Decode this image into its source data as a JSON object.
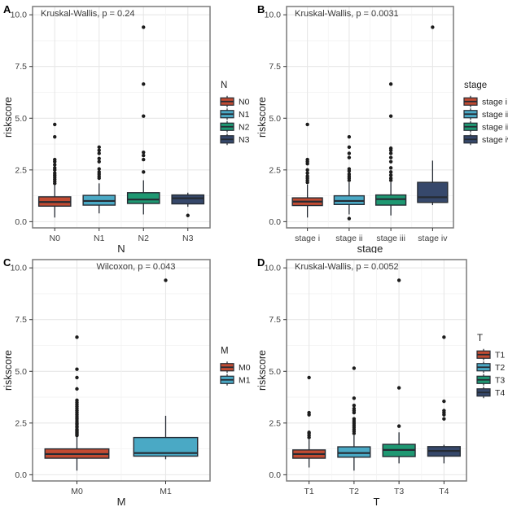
{
  "colors": {
    "background": "#ffffff",
    "panel_border": "#7a7a7a",
    "grid_major": "#e7e7e7",
    "grid_minor": "#f3f3f3",
    "box_stroke": "#252b33",
    "outlier": "#1c1c1c",
    "text": "#1f1f1f",
    "tick_text": "#404040",
    "annotation_text": "#3a3a3a",
    "group_palette": [
      "#c24b32",
      "#4aa9c5",
      "#1e9872",
      "#36486b"
    ]
  },
  "chart_data": [
    {
      "panel_label": "A",
      "type": "boxplot",
      "stat_annotation": "Kruskal-Wallis, p = 0.24",
      "annotation_align": "left",
      "xlabel": "N",
      "ylabel": "riskscore",
      "ylim": [
        -0.3,
        10.4
      ],
      "yticks": [
        0,
        2.5,
        5,
        7.5,
        10
      ],
      "ytick_labels": [
        "0.0",
        "2.5",
        "5.0",
        "7.5",
        "10.0"
      ],
      "grid": true,
      "legend_title": "N",
      "legend_position": "right",
      "categories": [
        "N0",
        "N1",
        "N2",
        "N3"
      ],
      "boxes": [
        {
          "group": "N0",
          "color_index": 0,
          "whisker_low": 0.2,
          "q1": 0.75,
          "median": 0.95,
          "q3": 1.2,
          "whisker_high": 1.8,
          "outliers": [
            1.85,
            1.95,
            2.05,
            2.15,
            2.25,
            2.35,
            2.5,
            2.6,
            2.75,
            2.9,
            3.0,
            4.1,
            4.7
          ]
        },
        {
          "group": "N1",
          "color_index": 1,
          "whisker_low": 0.4,
          "q1": 0.8,
          "median": 1.0,
          "q3": 1.27,
          "whisker_high": 1.85,
          "outliers": [
            2.1,
            2.2,
            2.3,
            2.4,
            2.55,
            2.9,
            3.05,
            3.3,
            3.45,
            3.6
          ]
        },
        {
          "group": "N2",
          "color_index": 2,
          "whisker_low": 0.35,
          "q1": 0.88,
          "median": 1.07,
          "q3": 1.4,
          "whisker_high": 2.0,
          "outliers": [
            2.4,
            3.0,
            3.2,
            3.35,
            5.1,
            6.65,
            9.4
          ]
        },
        {
          "group": "N3",
          "color_index": 3,
          "whisker_low": 0.72,
          "q1": 0.86,
          "median": 1.13,
          "q3": 1.29,
          "whisker_high": 1.4,
          "outliers": [
            0.3
          ]
        }
      ]
    },
    {
      "panel_label": "B",
      "type": "boxplot",
      "stat_annotation": "Kruskal-Wallis, p = 0.0031",
      "annotation_align": "left",
      "xlabel": "stage",
      "ylabel": "riskscore",
      "ylim": [
        -0.3,
        10.4
      ],
      "yticks": [
        0,
        2.5,
        5,
        7.5,
        10
      ],
      "ytick_labels": [
        "0.0",
        "2.5",
        "5.0",
        "7.5",
        "10.0"
      ],
      "grid": true,
      "legend_title": "stage",
      "legend_position": "right",
      "categories": [
        "stage i",
        "stage ii",
        "stage iii",
        "stage iv"
      ],
      "boxes": [
        {
          "group": "stage i",
          "color_index": 0,
          "whisker_low": 0.2,
          "q1": 0.78,
          "median": 0.97,
          "q3": 1.15,
          "whisker_high": 1.8,
          "outliers": [
            1.9,
            2.0,
            2.1,
            2.2,
            2.35,
            2.5,
            2.8,
            2.9,
            3.0,
            4.7
          ]
        },
        {
          "group": "stage ii",
          "color_index": 1,
          "whisker_low": 0.35,
          "q1": 0.83,
          "median": 1.0,
          "q3": 1.25,
          "whisker_high": 1.9,
          "outliers": [
            0.15,
            2.0,
            2.1,
            2.2,
            2.3,
            2.45,
            2.55,
            3.1,
            3.3,
            3.6,
            4.1
          ]
        },
        {
          "group": "stage iii",
          "color_index": 2,
          "whisker_low": 0.3,
          "q1": 0.8,
          "median": 1.09,
          "q3": 1.29,
          "whisker_high": 1.9,
          "outliers": [
            2.0,
            2.1,
            2.25,
            2.4,
            2.6,
            2.9,
            3.1,
            3.3,
            3.45,
            3.55,
            5.1,
            6.65
          ]
        },
        {
          "group": "stage iv",
          "color_index": 3,
          "whisker_low": 0.8,
          "q1": 0.93,
          "median": 1.18,
          "q3": 1.9,
          "whisker_high": 2.95,
          "outliers": [
            9.4
          ]
        }
      ]
    },
    {
      "panel_label": "C",
      "type": "boxplot",
      "stat_annotation": "Wilcoxon, p = 0.043",
      "annotation_align": "center",
      "xlabel": "M",
      "ylabel": "riskscore",
      "ylim": [
        -0.3,
        10.4
      ],
      "yticks": [
        0,
        2.5,
        5,
        7.5,
        10
      ],
      "ytick_labels": [
        "0.0",
        "2.5",
        "5.0",
        "7.5",
        "10.0"
      ],
      "grid": true,
      "legend_title": "M",
      "legend_position": "right",
      "categories": [
        "M0",
        "M1"
      ],
      "boxes": [
        {
          "group": "M0",
          "color_index": 0,
          "whisker_low": 0.2,
          "q1": 0.8,
          "median": 1.0,
          "q3": 1.25,
          "whisker_high": 1.85,
          "outliers": [
            1.9,
            1.95,
            2.0,
            2.05,
            2.1,
            2.15,
            2.2,
            2.3,
            2.35,
            2.45,
            2.5,
            2.6,
            2.7,
            2.8,
            2.9,
            3.0,
            3.1,
            3.2,
            3.3,
            3.4,
            3.5,
            3.6,
            4.15,
            4.7,
            5.1,
            6.65
          ]
        },
        {
          "group": "M1",
          "color_index": 1,
          "whisker_low": 0.75,
          "q1": 0.9,
          "median": 1.05,
          "q3": 1.8,
          "whisker_high": 2.85,
          "outliers": [
            9.4
          ]
        }
      ]
    },
    {
      "panel_label": "D",
      "type": "boxplot",
      "stat_annotation": "Kruskal-Wallis, p = 0.0052",
      "annotation_align": "left",
      "xlabel": "T",
      "ylabel": "riskscore",
      "ylim": [
        -0.3,
        10.4
      ],
      "yticks": [
        0,
        2.5,
        5,
        7.5,
        10
      ],
      "ytick_labels": [
        "0.0",
        "2.5",
        "5.0",
        "7.5",
        "10.0"
      ],
      "grid": true,
      "legend_title": "T",
      "legend_position": "right",
      "categories": [
        "T1",
        "T2",
        "T3",
        "T4"
      ],
      "boxes": [
        {
          "group": "T1",
          "color_index": 0,
          "whisker_low": 0.35,
          "q1": 0.8,
          "median": 1.0,
          "q3": 1.2,
          "whisker_high": 1.7,
          "outliers": [
            1.8,
            1.9,
            2.0,
            2.05,
            2.9,
            3.0,
            4.7
          ]
        },
        {
          "group": "T2",
          "color_index": 1,
          "whisker_low": 0.2,
          "q1": 0.85,
          "median": 1.05,
          "q3": 1.35,
          "whisker_high": 1.9,
          "outliers": [
            2.0,
            2.1,
            2.2,
            2.3,
            2.4,
            2.5,
            2.6,
            2.7,
            3.0,
            3.1,
            3.2,
            3.35,
            3.7,
            5.15
          ]
        },
        {
          "group": "T3",
          "color_index": 2,
          "whisker_low": 0.55,
          "q1": 0.88,
          "median": 1.2,
          "q3": 1.47,
          "whisker_high": 2.05,
          "outliers": [
            2.35,
            4.2,
            9.4
          ]
        },
        {
          "group": "T4",
          "color_index": 3,
          "whisker_low": 0.55,
          "q1": 0.9,
          "median": 1.15,
          "q3": 1.36,
          "whisker_high": 1.45,
          "outliers": [
            2.7,
            2.9,
            3.0,
            3.1,
            3.55,
            6.65
          ]
        }
      ]
    }
  ]
}
